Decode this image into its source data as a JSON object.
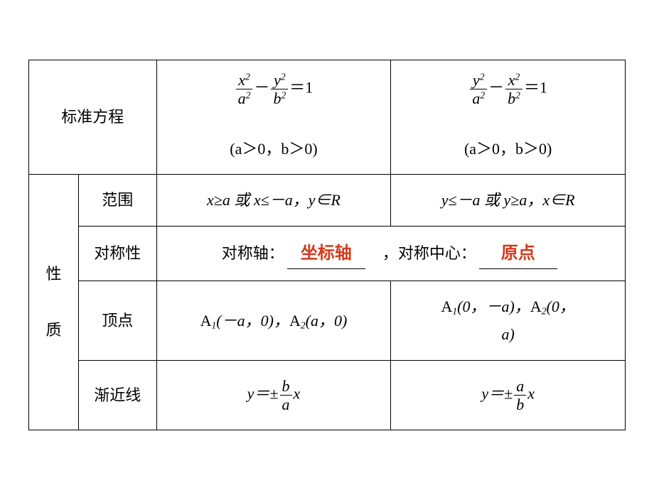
{
  "colors": {
    "border": "#000000",
    "text": "#000000",
    "highlight": "#d23a1a",
    "background": "#ffffff"
  },
  "labels": {
    "std_eq": "标准方程",
    "properties": "性",
    "properties2": "质",
    "range": "范围",
    "symmetry": "对称性",
    "vertex": "顶点",
    "asymptote": "渐近线",
    "cond1": "(a＞0，b＞0)",
    "cond2": "(a＞0，b＞0)",
    "range1_a": "x≥a 或 x≤－a，y∈R",
    "range2_a": "y≤－a 或 y≥a，x∈R",
    "sym_axis_label": "对称轴：",
    "sym_center_label": "，对称中心：",
    "axis_fill": "坐标轴",
    "center_fill": "原点",
    "vertex1": "A₁(－a，0)，A₂(a，0)",
    "vertex2_a": "A₁(0，－a)，A₂(0，",
    "vertex2_b": "a)",
    "eq_1": "＝1",
    "minus": "－",
    "y_eq_pm": "y＝±",
    "x_var": "x"
  },
  "frac": {
    "x2": "x",
    "y2": "y",
    "a2": "a",
    "b2": "b",
    "b": "b",
    "a": "a"
  }
}
